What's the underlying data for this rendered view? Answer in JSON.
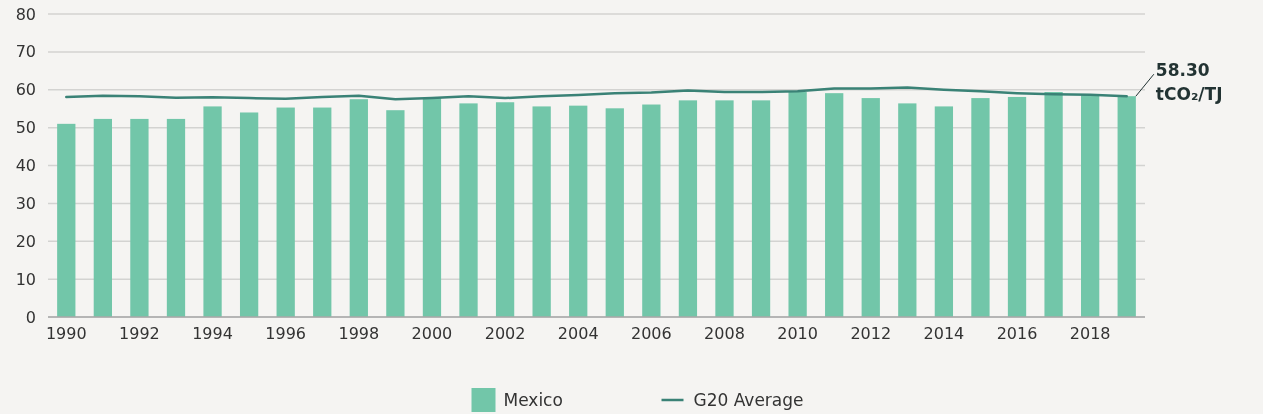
{
  "chart_data": {
    "type": "bar",
    "categories": [
      "1990",
      null,
      "1992",
      null,
      "1994",
      null,
      "1996",
      null,
      "1998",
      null,
      "2000",
      null,
      "2002",
      null,
      "2004",
      null,
      "2006",
      null,
      "2008",
      null,
      "2010",
      null,
      "2012",
      null,
      "2014",
      null,
      "2016",
      null,
      "2018",
      null
    ],
    "series": [
      {
        "name": "Mexico",
        "color": "#72c6a9",
        "values": [
          51,
          52.3,
          52.3,
          52.3,
          55.6,
          54,
          55.3,
          55.3,
          57.5,
          54.6,
          57.8,
          56.4,
          56.7,
          55.6,
          55.8,
          55.1,
          56.1,
          57.2,
          57.2,
          57.2,
          59.4,
          59.1,
          57.8,
          56.4,
          55.6,
          57.8,
          58.1,
          59.4,
          58.6,
          58.3
        ]
      },
      {
        "name": "G20 Average",
        "type": "line",
        "color": "#3a8276",
        "values": [
          58.1,
          58.4,
          58.3,
          57.9,
          58,
          57.8,
          57.6,
          58.1,
          58.4,
          57.5,
          57.8,
          58.3,
          57.8,
          58.3,
          58.6,
          59.1,
          59.3,
          59.8,
          59.4,
          59.4,
          59.6,
          60.3,
          60.3,
          60.6,
          60,
          59.6,
          59.1,
          58.8,
          58.7,
          58.3
        ]
      }
    ],
    "ylim": [
      0,
      80
    ],
    "yticks": [
      0,
      10,
      20,
      30,
      40,
      50,
      60,
      70,
      80
    ],
    "grid": "y",
    "legend": "bottom",
    "annotations": [
      "58.30 tCO₂/TJ"
    ]
  }
}
